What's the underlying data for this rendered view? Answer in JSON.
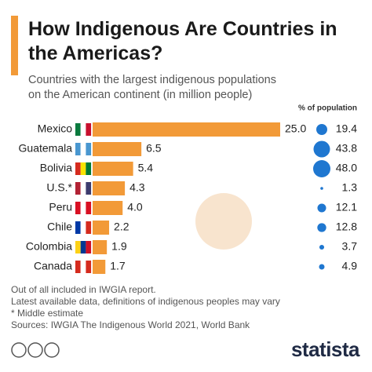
{
  "chart_data": {
    "type": "bar",
    "title": "How Indigenous Are Countries in the Americas?",
    "subtitle": "Countries with the largest indigenous populations on the American continent (in million people)",
    "categories": [
      "Mexico",
      "Guatemala",
      "Bolivia",
      "U.S.*",
      "Peru",
      "Chile",
      "Colombia",
      "Canada"
    ],
    "values": [
      25.0,
      6.5,
      5.4,
      4.3,
      4.0,
      2.2,
      1.9,
      1.7
    ],
    "value_labels": [
      "25.0",
      "6.5",
      "5.4",
      "4.3",
      "4.0",
      "2.2",
      "1.9",
      "1.7"
    ],
    "color": "#f29a38",
    "population_share_header": "% of population",
    "population_share": [
      19.4,
      43.8,
      48.0,
      1.3,
      12.1,
      12.8,
      3.7,
      4.9
    ],
    "population_share_labels": [
      "19.4",
      "43.8",
      "48.0",
      "1.3",
      "12.1",
      "12.8",
      "3.7",
      "4.9"
    ],
    "population_share_color": "#1f77d0",
    "notes": [
      "Out of all included in IWGIA report.",
      "Latest available data, definitions of indigenous peoples may vary",
      "* Middle estimate",
      "Sources: IWGIA The Indigenous World 2021, World Bank"
    ],
    "brand": "statista"
  }
}
